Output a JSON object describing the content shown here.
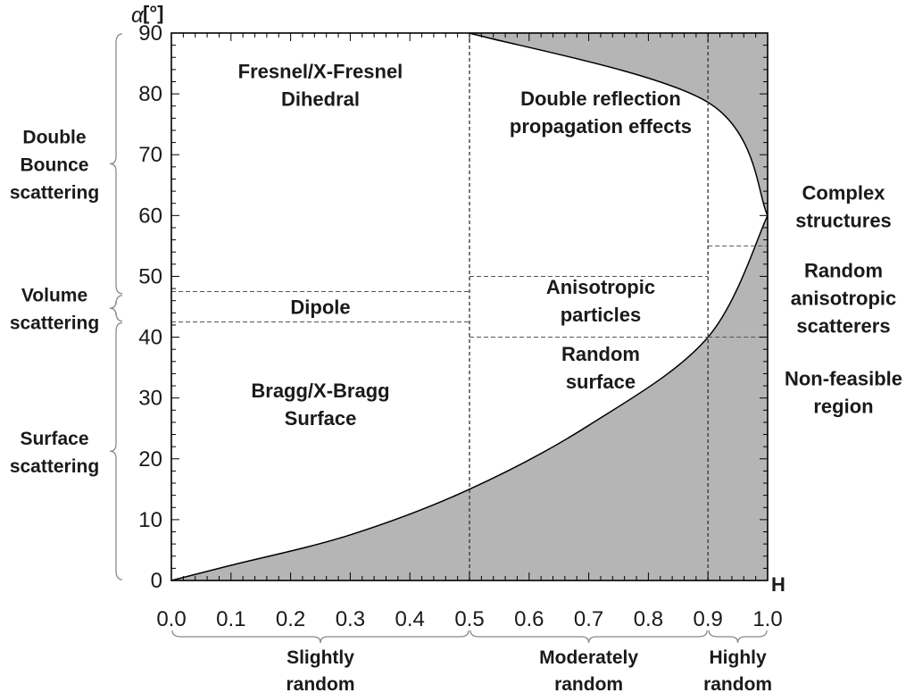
{
  "chart_data": {
    "type": "area",
    "x_axis": {
      "label": "H",
      "range": [
        0,
        1
      ],
      "ticks": [
        "0.0",
        "0.1",
        "0.2",
        "0.3",
        "0.4",
        "0.5",
        "0.6",
        "0.7",
        "0.8",
        "0.9",
        "1.0"
      ]
    },
    "y_axis": {
      "symbol": "α",
      "unit": "[°]",
      "range": [
        0,
        90
      ],
      "ticks": [
        "0",
        "10",
        "20",
        "30",
        "40",
        "50",
        "60",
        "70",
        "80",
        "90"
      ]
    },
    "feasible_boundary": {
      "upper_curve": [
        [
          0.0,
          0.0
        ],
        [
          0.5,
          90.0
        ],
        [
          0.9,
          78.6
        ],
        [
          1.0,
          60.0
        ]
      ],
      "lower_curve": [
        [
          0.0,
          0.0
        ],
        [
          0.1,
          2.5
        ],
        [
          0.3,
          7.5
        ],
        [
          0.5,
          15.0
        ],
        [
          0.7,
          25.5
        ],
        [
          0.9,
          40.0
        ],
        [
          1.0,
          60.0
        ]
      ]
    },
    "shaded_region_label": "Non-feasible region",
    "vertical_dividers_H": [
      0.5,
      0.9
    ],
    "horizontal_dividers": [
      {
        "h_range": [
          0.0,
          0.5
        ],
        "alpha": [
          47.5,
          42.5
        ]
      },
      {
        "h_range": [
          0.5,
          0.9
        ],
        "alpha": [
          50.0,
          40.0
        ]
      },
      {
        "h_range": [
          0.9,
          1.0
        ],
        "alpha": [
          55.0,
          40.0
        ]
      }
    ],
    "region_labels": [
      {
        "lines": [
          "Fresnel/X-Fresnel",
          "Dihedral"
        ],
        "h": 0.25,
        "alpha": 81.5
      },
      {
        "lines": [
          "Dipole"
        ],
        "h": 0.25,
        "alpha": 45.0
      },
      {
        "lines": [
          "Bragg/X-Bragg",
          "Surface"
        ],
        "h": 0.25,
        "alpha": 29.0
      },
      {
        "lines": [
          "Double reflection",
          "propagation effects"
        ],
        "h": 0.72,
        "alpha": 77.0
      },
      {
        "lines": [
          "Anisotropic",
          "particles"
        ],
        "h": 0.72,
        "alpha": 46.0
      },
      {
        "lines": [
          "Random",
          "surface"
        ],
        "h": 0.72,
        "alpha": 35.0
      }
    ],
    "right_labels": [
      {
        "lines": [
          "Complex",
          "structures"
        ],
        "alpha": 61.5
      },
      {
        "lines": [
          "Random",
          "anisotropic",
          "scatterers"
        ],
        "alpha": 46.5
      },
      {
        "lines": [
          "Non-feasible",
          "region"
        ],
        "alpha": 31.0
      }
    ],
    "left_groups": [
      {
        "lines": [
          "Double",
          "Bounce",
          "scattering"
        ],
        "alpha_range": [
          47.0,
          90.0
        ]
      },
      {
        "lines": [
          "Volume",
          "scattering"
        ],
        "alpha_range": [
          42.5,
          47.0
        ]
      },
      {
        "lines": [
          "Surface",
          "scattering"
        ],
        "alpha_range": [
          0.0,
          42.5
        ]
      }
    ],
    "bottom_groups": [
      {
        "lines": [
          "Slightly",
          "random"
        ],
        "h_range": [
          0.0,
          0.5
        ]
      },
      {
        "lines": [
          "Moderately",
          "random"
        ],
        "h_range": [
          0.5,
          0.9
        ]
      },
      {
        "lines": [
          "Highly",
          "random"
        ],
        "h_range": [
          0.9,
          1.0
        ]
      }
    ],
    "colors": {
      "shade": "#b5b5b5",
      "axis": "#000000",
      "divider": "#555555",
      "brace": "#888888"
    }
  }
}
